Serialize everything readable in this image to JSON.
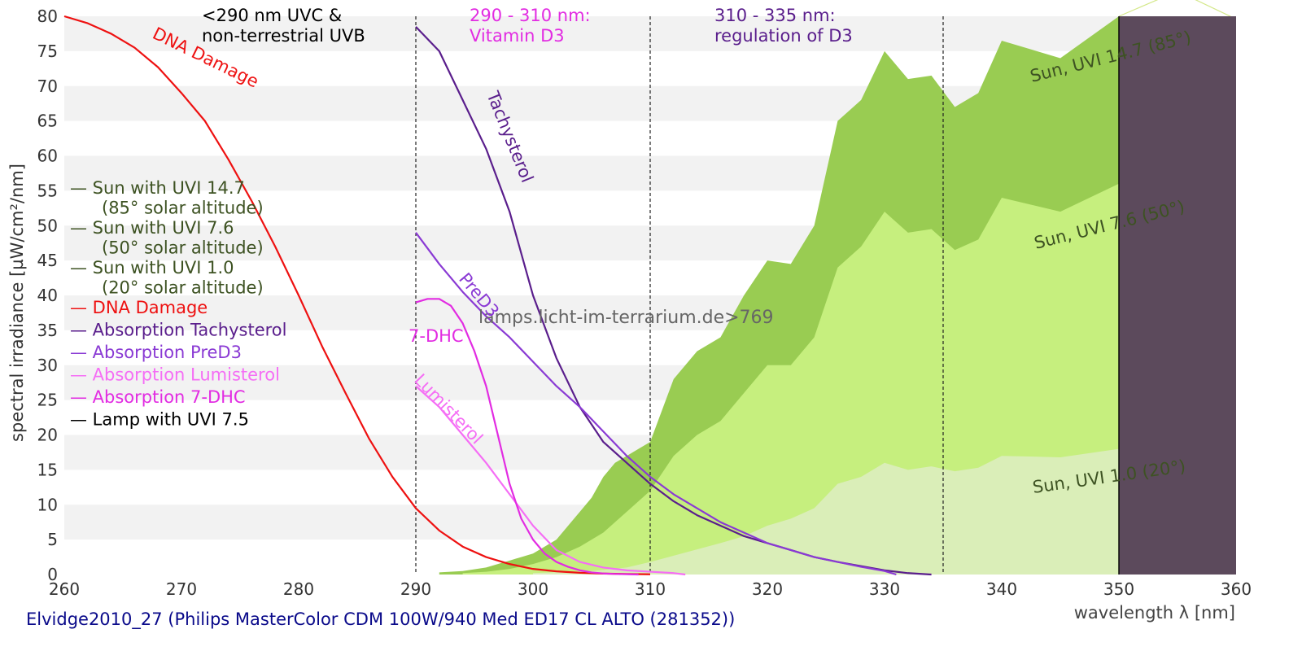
{
  "chart_data": {
    "type": "area",
    "xlabel": "wavelength λ [nm]",
    "ylabel": "spectral irradiance [µW/cm²/nm]",
    "xlim": [
      260,
      360
    ],
    "ylim": [
      0,
      80
    ],
    "xticks": [
      260,
      270,
      280,
      290,
      300,
      310,
      320,
      330,
      340,
      350,
      360
    ],
    "yticks": [
      0,
      5,
      10,
      15,
      20,
      25,
      30,
      35,
      40,
      45,
      50,
      55,
      60,
      65,
      70,
      75,
      80
    ],
    "grid": "horizontal alternating bands",
    "footer": "Elvidge2010_27 (Philips MasterColor CDM 100W/940 Med ED17 CL ALTO (281352))",
    "watermark": "lamps.licht-im-terrarium.de>769",
    "vlines": [
      290,
      310,
      335
    ],
    "region_labels": [
      {
        "line1": "<290 nm UVC &",
        "line2": "non-terrestrial UVB",
        "color": "#000000"
      },
      {
        "line1": "290 - 310 nm:",
        "line2": "Vitamin D3",
        "color": "#e22ce2"
      },
      {
        "line1": "310 - 335 nm:",
        "line2": "regulation of D3",
        "color": "#5a1e8c"
      }
    ],
    "lamp_region": {
      "x_from": 350,
      "x_to": 360,
      "color": "#5c4a5c"
    },
    "sun_areas": [
      {
        "label": "Sun, UVI 14.7 (85°)",
        "color": "#99cc52",
        "x": [
          292,
          294,
          296,
          298,
          300,
          302,
          304,
          305,
          306,
          307,
          308,
          309,
          310,
          312,
          314,
          316,
          318,
          320,
          322,
          324,
          326,
          328,
          330,
          332,
          334,
          336,
          338,
          340,
          345,
          350
        ],
        "y": [
          0.3,
          0.5,
          1,
          2,
          3,
          5,
          9,
          11,
          14,
          16,
          17,
          18,
          19,
          28,
          32,
          34,
          40,
          45,
          44.5,
          50,
          65,
          68,
          75,
          71,
          71.5,
          67,
          69,
          76.5,
          74,
          80
        ]
      },
      {
        "label": "Sun, UVI 7.6 (50°)",
        "color": "#c6ef7e",
        "x": [
          294,
          296,
          298,
          300,
          302,
          304,
          306,
          308,
          310,
          312,
          314,
          316,
          318,
          320,
          322,
          324,
          326,
          328,
          330,
          332,
          334,
          336,
          338,
          340,
          345,
          350
        ],
        "y": [
          0.2,
          0.4,
          0.8,
          1.5,
          2.5,
          4,
          6,
          9,
          12,
          17,
          20,
          22,
          26,
          30,
          30,
          34,
          44,
          47,
          52,
          49,
          49.5,
          46.5,
          48,
          54,
          52,
          56
        ]
      },
      {
        "label": "Sun, UVI 1.0 (20°)",
        "color": "#daeeb8",
        "x": [
          300,
          305,
          308,
          310,
          312,
          314,
          316,
          318,
          320,
          322,
          324,
          326,
          328,
          330,
          332,
          334,
          336,
          338,
          340,
          345,
          350
        ],
        "y": [
          0.2,
          0.5,
          1,
          1.8,
          2.7,
          3.6,
          4.5,
          5.5,
          7,
          8,
          9.5,
          13,
          14,
          16,
          15,
          15.5,
          14.8,
          15.3,
          17,
          16.8,
          18
        ]
      }
    ],
    "curves": [
      {
        "name": "DNA Damage",
        "label": "DNA Damage",
        "color": "#ee1111",
        "x": [
          260,
          262,
          264,
          266,
          268,
          270,
          272,
          274,
          276,
          278,
          280,
          282,
          284,
          286,
          288,
          290,
          292,
          294,
          296,
          298,
          300,
          302,
          304,
          306,
          308,
          310
        ],
        "y": [
          80,
          79,
          77.5,
          75.5,
          72.7,
          69,
          65,
          59.5,
          53.5,
          47,
          40,
          32.7,
          26,
          19.5,
          14,
          9.5,
          6.3,
          4,
          2.5,
          1.5,
          0.8,
          0.45,
          0.25,
          0.13,
          0.07,
          0.03
        ]
      },
      {
        "name": "Absorption Tachysterol",
        "label": "Tachysterol",
        "color": "#5a1e8c",
        "x": [
          290,
          292,
          294,
          296,
          298,
          300,
          302,
          304,
          306,
          308,
          310,
          312,
          314,
          316,
          318,
          320,
          322,
          324,
          326,
          328,
          330,
          332,
          334
        ],
        "y": [
          78.5,
          75,
          68,
          61,
          52,
          40,
          31,
          24,
          19,
          16,
          13,
          10.5,
          8.5,
          7,
          5.5,
          4.5,
          3.5,
          2.5,
          1.8,
          1.2,
          0.6,
          0.2,
          0
        ]
      },
      {
        "name": "Absorption PreD3",
        "label": "PreD3",
        "color": "#8a3ad4",
        "x": [
          290,
          292,
          294,
          296,
          298,
          300,
          302,
          304,
          306,
          308,
          310,
          312,
          314,
          316,
          318,
          320,
          322,
          324,
          326,
          328,
          330,
          331
        ],
        "y": [
          49,
          44.5,
          40.5,
          37,
          34,
          30.5,
          27,
          24,
          20.5,
          17,
          14,
          11.5,
          9.5,
          7.5,
          6,
          4.5,
          3.5,
          2.5,
          1.8,
          1.1,
          0.5,
          0
        ]
      },
      {
        "name": "Absorption Lumisterol",
        "label": "Lumisterol",
        "color": "#f56ef5",
        "x": [
          290,
          292,
          294,
          296,
          298,
          300,
          302,
          304,
          306,
          308,
          310,
          312,
          313
        ],
        "y": [
          27,
          24,
          20,
          16,
          11.5,
          7,
          3.5,
          1.8,
          1,
          0.6,
          0.4,
          0.2,
          0
        ]
      },
      {
        "name": "Absorption 7-DHC",
        "label": "7-DHC",
        "color": "#e22ce2",
        "x": [
          290,
          291,
          292,
          293,
          294,
          295,
          296,
          297,
          298,
          299,
          300,
          301,
          302,
          303,
          304,
          305,
          306,
          307,
          308,
          309
        ],
        "y": [
          39,
          39.5,
          39.5,
          38.5,
          36,
          32,
          27,
          20,
          13,
          8,
          5,
          3,
          1.8,
          1.1,
          0.6,
          0.3,
          0.15,
          0.08,
          0.04,
          0
        ]
      }
    ],
    "lamp_series": {
      "name": "Lamp with UVI 7.5",
      "color": "#000000",
      "x": [
        350,
        350
      ],
      "y": [
        0,
        80
      ]
    },
    "legend": [
      {
        "line1": "— Sun with UVI 14.7",
        "line2": "(85° solar altitude)",
        "color": "#3d5222"
      },
      {
        "line1": "— Sun with UVI 7.6",
        "line2": "(50° solar altitude)",
        "color": "#3d5222"
      },
      {
        "line1": "— Sun with UVI 1.0",
        "line2": "(20° solar altitude)",
        "color": "#3d5222"
      },
      {
        "line1": "— DNA Damage",
        "color": "#ee1111"
      },
      {
        "line1": "— Absorption Tachysterol",
        "color": "#5a1e8c"
      },
      {
        "line1": "— Absorption PreD3",
        "color": "#8a3ad4"
      },
      {
        "line1": "— Absorption Lumisterol",
        "color": "#f56ef5"
      },
      {
        "line1": "— Absorption 7-DHC",
        "color": "#e22ce2"
      },
      {
        "line1": "— Lamp with UVI 7.5",
        "color": "#000000"
      }
    ]
  }
}
